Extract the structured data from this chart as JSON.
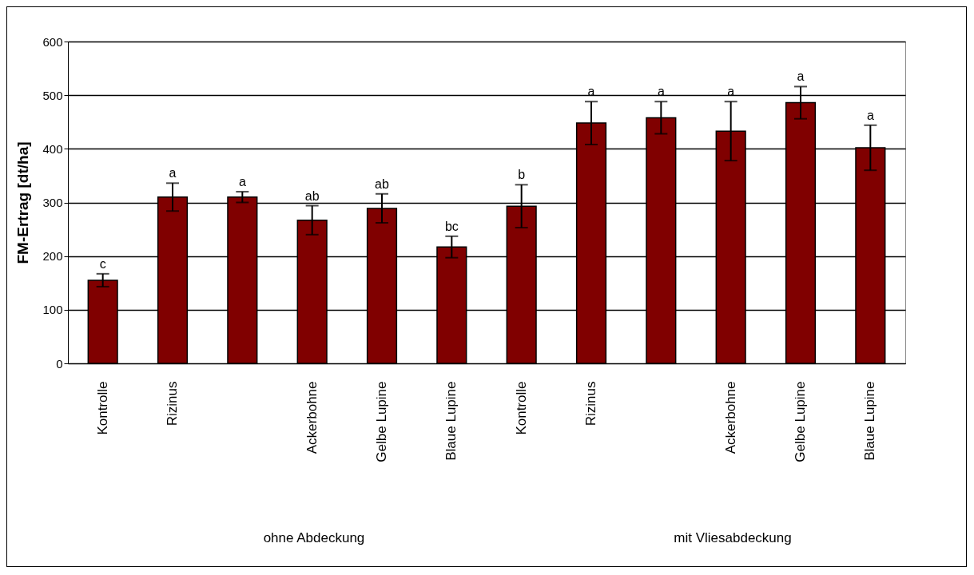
{
  "chart_data": {
    "type": "bar",
    "ylabel": "FM-Ertrag [dt/ha]",
    "categories": [
      "Kontrolle",
      "Rizinus",
      null,
      "Ackerbohne",
      "Gelbe Lupine",
      "Blaue Lupine",
      "Kontrolle",
      "Rizinus",
      null,
      "Ackerbohne",
      "Gelbe Lupine",
      "Blaue Lupine"
    ],
    "values": [
      155,
      310,
      310,
      267,
      289,
      217,
      293,
      448,
      458,
      433,
      486,
      402
    ],
    "errors": [
      12,
      26,
      10,
      27,
      27,
      20,
      40,
      40,
      30,
      55,
      30,
      42
    ],
    "value_labels": [
      "c",
      "a",
      "a",
      "ab",
      "ab",
      "bc",
      "b",
      "a",
      "a",
      "a",
      "a",
      "a"
    ],
    "color": "#800000",
    "ylim": [
      0,
      600
    ],
    "yticks": [
      0,
      100,
      200,
      300,
      400,
      500,
      600
    ],
    "grid": "y",
    "annotations": [
      "ohne Abdeckung",
      "mit Vliesabdeckung"
    ]
  }
}
